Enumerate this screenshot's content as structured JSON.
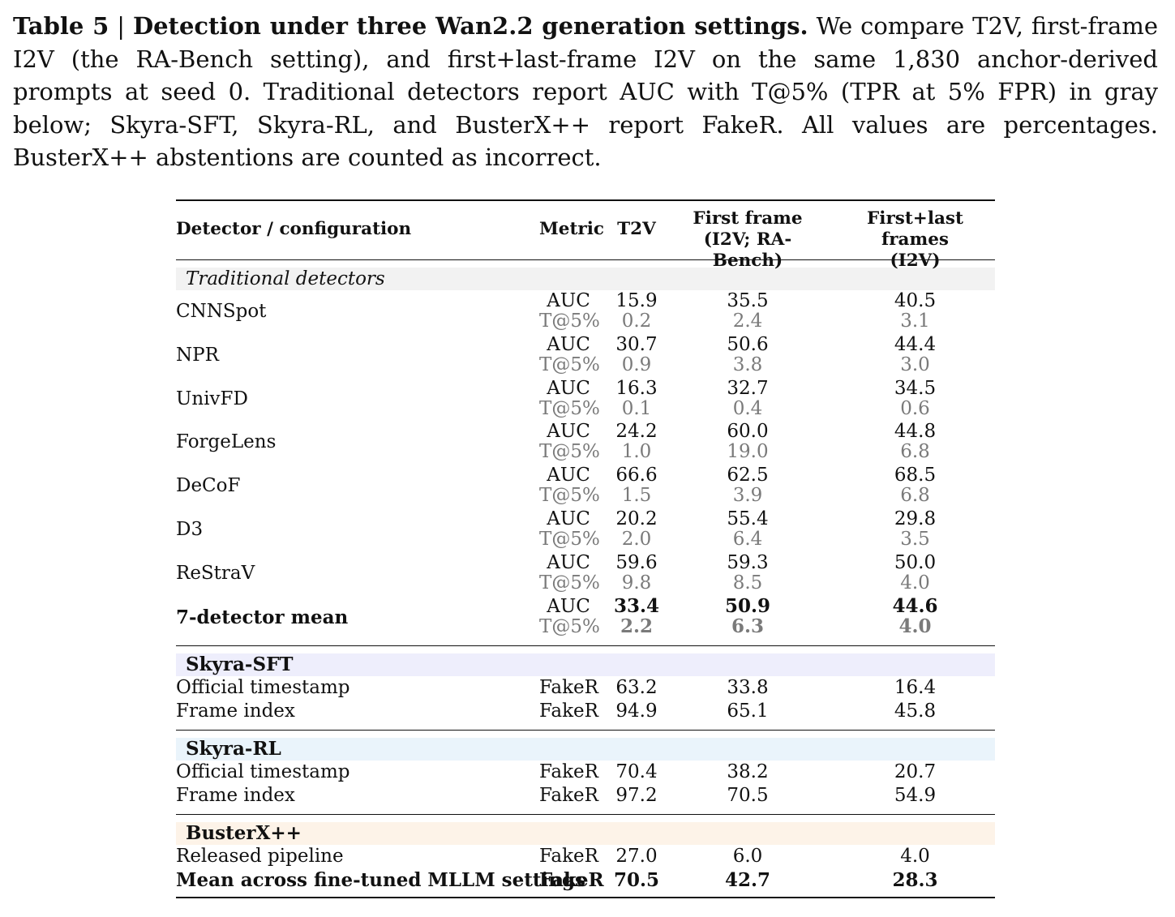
{
  "caption": {
    "label": "Table 5",
    "sep": " | ",
    "title": "Detection under three Wan2.2 generation settings.",
    "body": " We compare T2V, first-frame I2V (the RA-Bench setting), and first+last-frame I2V on the same 1,830 anchor-derived prompts at seed 0. Traditional detectors report AUC with T@5% (TPR at 5% FPR) in gray below; Skyra-SFT, Skyra-RL, and BusterX++ report FakeR. All values are percentages. BusterX++ abstentions are counted as incorrect."
  },
  "header": {
    "detector": "Detector / configuration",
    "metric": "Metric",
    "t2v": "T2V",
    "ff_line1": "First frame",
    "ff_line2": "(I2V; RA-Bench)",
    "fl_line1": "First+last frames",
    "fl_line2": "(I2V)"
  },
  "traditional": {
    "section_label": "Traditional detectors",
    "metric1": "AUC",
    "metric2": "T@5%",
    "rows": [
      {
        "name": "CNNSpot",
        "auc": [
          "15.9",
          "35.5",
          "40.5"
        ],
        "tpr": [
          "0.2",
          "2.4",
          "3.1"
        ]
      },
      {
        "name": "NPR",
        "auc": [
          "30.7",
          "50.6",
          "44.4"
        ],
        "tpr": [
          "0.9",
          "3.8",
          "3.0"
        ]
      },
      {
        "name": "UnivFD",
        "auc": [
          "16.3",
          "32.7",
          "34.5"
        ],
        "tpr": [
          "0.1",
          "0.4",
          "0.6"
        ]
      },
      {
        "name": "ForgeLens",
        "auc": [
          "24.2",
          "60.0",
          "44.8"
        ],
        "tpr": [
          "1.0",
          "19.0",
          "6.8"
        ]
      },
      {
        "name": "DeCoF",
        "auc": [
          "66.6",
          "62.5",
          "68.5"
        ],
        "tpr": [
          "1.5",
          "3.9",
          "6.8"
        ]
      },
      {
        "name": "D3",
        "auc": [
          "20.2",
          "55.4",
          "29.8"
        ],
        "tpr": [
          "2.0",
          "6.4",
          "3.5"
        ]
      },
      {
        "name": "ReStraV",
        "auc": [
          "59.6",
          "59.3",
          "50.0"
        ],
        "tpr": [
          "9.8",
          "8.5",
          "4.0"
        ]
      }
    ],
    "mean": {
      "name": "7-detector mean",
      "auc": [
        "33.4",
        "50.9",
        "44.6"
      ],
      "tpr": [
        "2.2",
        "6.3",
        "4.0"
      ]
    }
  },
  "skyra_sft": {
    "section_label": "Skyra-SFT",
    "rows": [
      {
        "name": "Official timestamp",
        "metric": "FakeR",
        "vals": [
          "63.2",
          "33.8",
          "16.4"
        ]
      },
      {
        "name": "Frame index",
        "metric": "FakeR",
        "vals": [
          "94.9",
          "65.1",
          "45.8"
        ]
      }
    ]
  },
  "skyra_rl": {
    "section_label": "Skyra-RL",
    "rows": [
      {
        "name": "Official timestamp",
        "metric": "FakeR",
        "vals": [
          "70.4",
          "38.2",
          "20.7"
        ]
      },
      {
        "name": "Frame index",
        "metric": "FakeR",
        "vals": [
          "97.2",
          "70.5",
          "54.9"
        ]
      }
    ]
  },
  "busterx": {
    "section_label": "BusterX++",
    "rows": [
      {
        "name": "Released pipeline",
        "metric": "FakeR",
        "vals": [
          "27.0",
          "6.0",
          "4.0"
        ]
      }
    ],
    "mean": {
      "name": "Mean across fine-tuned MLLM settings",
      "metric": "FakeR",
      "vals": [
        "70.5",
        "42.7",
        "28.3"
      ]
    }
  }
}
